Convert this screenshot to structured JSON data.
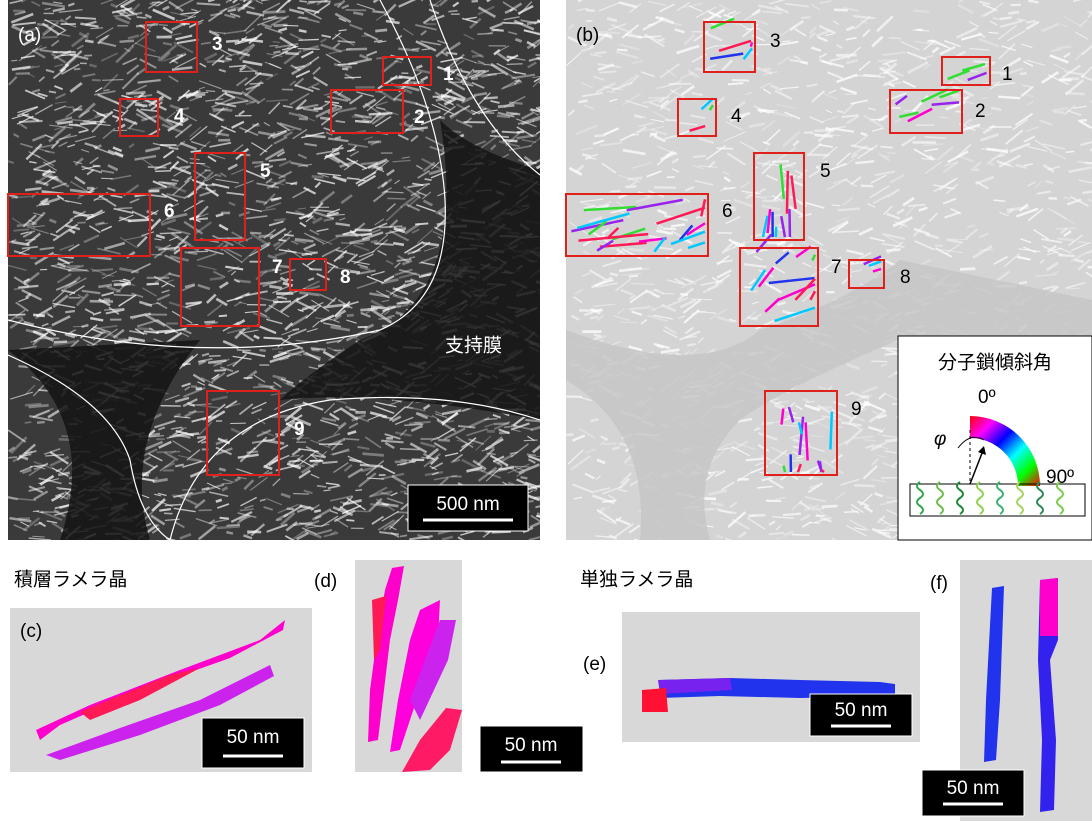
{
  "panel_a": {
    "label": "(a)",
    "box_labels": [
      "1",
      "2",
      "3",
      "4",
      "5",
      "6",
      "7",
      "8",
      "9"
    ],
    "membrane_label": "支持膜",
    "scale_bar": "500 nm"
  },
  "panel_b": {
    "label": "(b)",
    "box_labels": [
      "1",
      "2",
      "3",
      "4",
      "5",
      "6",
      "7",
      "8",
      "9"
    ],
    "legend": {
      "title": "分子鎖傾斜角",
      "angle_min": "0º",
      "angle_max": "90º",
      "symbol": "φ"
    }
  },
  "captions": {
    "stacked": "積層ラメラ晶",
    "single": "単独ラメラ晶"
  },
  "panel_c": {
    "label": "(c)",
    "scale_bar": "50 nm"
  },
  "panel_d": {
    "label": "(d)",
    "scale_bar": "50 nm"
  },
  "panel_e": {
    "label": "(e)",
    "scale_bar": "50 nm"
  },
  "panel_f": {
    "label": "(f)",
    "scale_bar": "50 nm"
  }
}
